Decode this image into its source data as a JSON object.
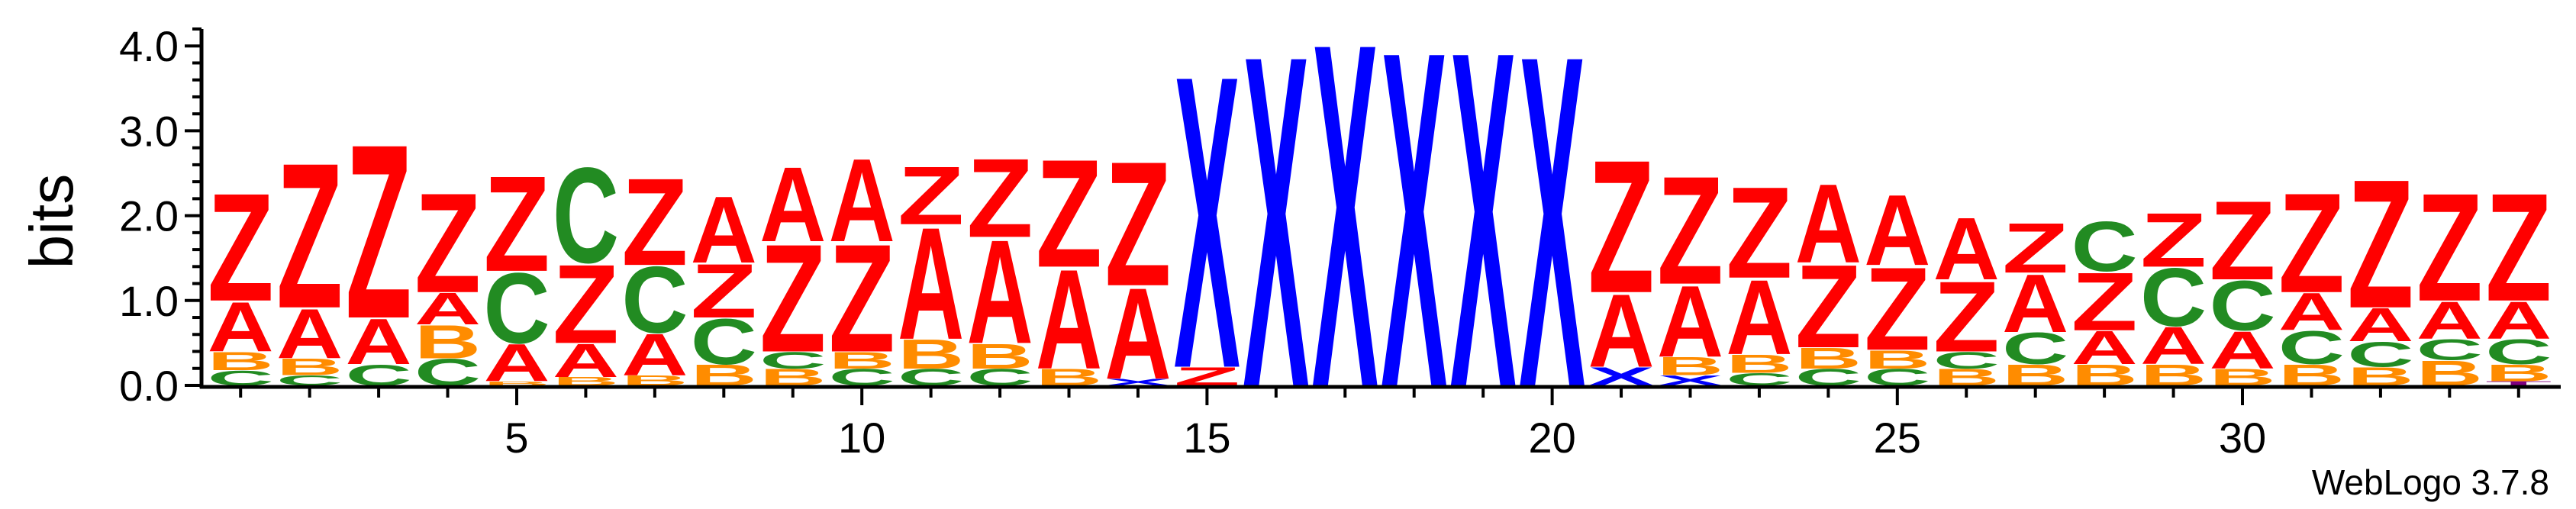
{
  "chart_data": {
    "type": "sequence-logo",
    "ylabel": "bits",
    "ylim": [
      0,
      4.2
    ],
    "yticks": [
      "0.0",
      "1.0",
      "2.0",
      "3.0",
      "4.0"
    ],
    "xticks": [
      "5",
      "10",
      "15",
      "20",
      "25",
      "30"
    ],
    "x_major_positions": [
      5,
      10,
      15,
      20,
      25,
      30
    ],
    "x_range": [
      1,
      34
    ],
    "colors": {
      "Z": "#ff0000",
      "A": "#ff0000",
      "C": "#228b22",
      "B": "#ff8c00",
      "X": "#0000ff",
      "T": "#800080"
    },
    "positions": [
      {
        "pos": 1,
        "stack": [
          [
            "C",
            0.18
          ],
          [
            "B",
            0.22
          ],
          [
            "A",
            0.6
          ],
          [
            "Z",
            1.3
          ]
        ]
      },
      {
        "pos": 2,
        "stack": [
          [
            "C",
            0.12
          ],
          [
            "B",
            0.2
          ],
          [
            "A",
            0.6
          ],
          [
            "Z",
            1.75
          ]
        ]
      },
      {
        "pos": 3,
        "stack": [
          [
            "C",
            0.25
          ],
          [
            "A",
            0.55
          ],
          [
            "Z",
            2.1
          ]
        ]
      },
      {
        "pos": 4,
        "stack": [
          [
            "C",
            0.32
          ],
          [
            "B",
            0.4
          ],
          [
            "A",
            0.38
          ],
          [
            "Z",
            1.2
          ]
        ]
      },
      {
        "pos": 5,
        "stack": [
          [
            "B",
            0.05
          ],
          [
            "A",
            0.45
          ],
          [
            "C",
            0.85
          ],
          [
            "Z",
            1.15
          ]
        ]
      },
      {
        "pos": 6,
        "stack": [
          [
            "B",
            0.1
          ],
          [
            "A",
            0.4
          ],
          [
            "Z",
            0.95
          ],
          [
            "C",
            1.15
          ]
        ]
      },
      {
        "pos": 7,
        "stack": [
          [
            "B",
            0.12
          ],
          [
            "A",
            0.5
          ],
          [
            "C",
            0.8
          ],
          [
            "Z",
            1.05
          ]
        ]
      },
      {
        "pos": 8,
        "stack": [
          [
            "B",
            0.25
          ],
          [
            "C",
            0.55
          ],
          [
            "Z",
            0.65
          ],
          [
            "A",
            0.8
          ]
        ]
      },
      {
        "pos": 9,
        "stack": [
          [
            "B",
            0.2
          ],
          [
            "C",
            0.2
          ],
          [
            "Z",
            1.3
          ],
          [
            "A",
            0.9
          ]
        ]
      },
      {
        "pos": 10,
        "stack": [
          [
            "C",
            0.2
          ],
          [
            "B",
            0.2
          ],
          [
            "Z",
            1.3
          ],
          [
            "A",
            1.0
          ]
        ]
      },
      {
        "pos": 11,
        "stack": [
          [
            "C",
            0.2
          ],
          [
            "B",
            0.35
          ],
          [
            "A",
            1.35
          ],
          [
            "Z",
            0.7
          ]
        ]
      },
      {
        "pos": 12,
        "stack": [
          [
            "C",
            0.2
          ],
          [
            "B",
            0.3
          ],
          [
            "A",
            1.25
          ],
          [
            "Z",
            0.95
          ]
        ]
      },
      {
        "pos": 13,
        "stack": [
          [
            "B",
            0.2
          ],
          [
            "A",
            1.2
          ],
          [
            "Z",
            1.3
          ]
        ]
      },
      {
        "pos": 14,
        "stack": [
          [
            "X",
            0.08
          ],
          [
            "A",
            1.1
          ],
          [
            "Z",
            1.5
          ]
        ]
      },
      {
        "pos": 15,
        "stack": [
          [
            "Z",
            0.22
          ],
          [
            "X",
            3.53
          ]
        ]
      },
      {
        "pos": 16,
        "stack": [
          [
            "X",
            4.0
          ]
        ]
      },
      {
        "pos": 17,
        "stack": [
          [
            "X",
            4.15
          ]
        ]
      },
      {
        "pos": 18,
        "stack": [
          [
            "X",
            4.05
          ]
        ]
      },
      {
        "pos": 19,
        "stack": [
          [
            "X",
            4.05
          ]
        ]
      },
      {
        "pos": 20,
        "stack": [
          [
            "X",
            4.0
          ]
        ]
      },
      {
        "pos": 21,
        "stack": [
          [
            "X",
            0.22
          ],
          [
            "A",
            0.88
          ],
          [
            "Z",
            1.6
          ]
        ]
      },
      {
        "pos": 22,
        "stack": [
          [
            "X",
            0.12
          ],
          [
            "B",
            0.22
          ],
          [
            "A",
            0.86
          ],
          [
            "Z",
            1.3
          ]
        ]
      },
      {
        "pos": 23,
        "stack": [
          [
            "C",
            0.15
          ],
          [
            "B",
            0.22
          ],
          [
            "A",
            0.9
          ],
          [
            "Z",
            1.1
          ]
        ]
      },
      {
        "pos": 24,
        "stack": [
          [
            "C",
            0.2
          ],
          [
            "B",
            0.25
          ],
          [
            "Z",
            1.0
          ],
          [
            "A",
            0.95
          ]
        ]
      },
      {
        "pos": 25,
        "stack": [
          [
            "C",
            0.2
          ],
          [
            "B",
            0.22
          ],
          [
            "Z",
            1.0
          ],
          [
            "A",
            0.85
          ]
        ]
      },
      {
        "pos": 26,
        "stack": [
          [
            "B",
            0.2
          ],
          [
            "C",
            0.2
          ],
          [
            "Z",
            0.85
          ],
          [
            "A",
            0.75
          ]
        ]
      },
      {
        "pos": 27,
        "stack": [
          [
            "B",
            0.25
          ],
          [
            "C",
            0.38
          ],
          [
            "A",
            0.7
          ],
          [
            "Z",
            0.6
          ]
        ]
      },
      {
        "pos": 28,
        "stack": [
          [
            "B",
            0.25
          ],
          [
            "A",
            0.4
          ],
          [
            "Z",
            0.7
          ],
          [
            "C",
            0.6
          ]
        ]
      },
      {
        "pos": 29,
        "stack": [
          [
            "B",
            0.25
          ],
          [
            "A",
            0.45
          ],
          [
            "C",
            0.7
          ],
          [
            "Z",
            0.65
          ]
        ]
      },
      {
        "pos": 30,
        "stack": [
          [
            "B",
            0.2
          ],
          [
            "A",
            0.45
          ],
          [
            "C",
            0.6
          ],
          [
            "Z",
            0.95
          ]
        ]
      },
      {
        "pos": 31,
        "stack": [
          [
            "B",
            0.25
          ],
          [
            "C",
            0.4
          ],
          [
            "A",
            0.45
          ],
          [
            "Z",
            1.2
          ]
        ]
      },
      {
        "pos": 32,
        "stack": [
          [
            "B",
            0.22
          ],
          [
            "C",
            0.3
          ],
          [
            "A",
            0.4
          ],
          [
            "Z",
            1.55
          ]
        ]
      },
      {
        "pos": 33,
        "stack": [
          [
            "B",
            0.3
          ],
          [
            "C",
            0.25
          ],
          [
            "A",
            0.45
          ],
          [
            "Z",
            1.3
          ]
        ]
      },
      {
        "pos": 34,
        "stack": [
          [
            "T",
            0.05
          ],
          [
            "B",
            0.2
          ],
          [
            "C",
            0.3
          ],
          [
            "A",
            0.45
          ],
          [
            "Z",
            1.3
          ]
        ]
      }
    ]
  },
  "footer": {
    "credit": "WebLogo 3.7.8"
  }
}
